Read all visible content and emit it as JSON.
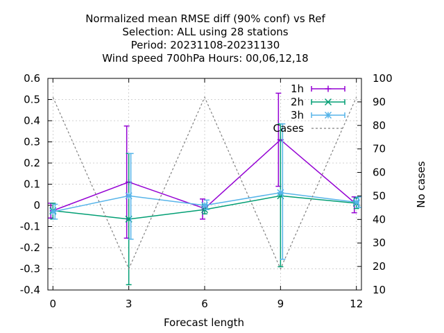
{
  "chart_data": {
    "type": "line",
    "title_lines": [
      "Normalized mean RMSE diff (90% conf) vs Ref",
      "Selection: ALL using    28 stations",
      "Period: 20231108-20231130",
      "Wind speed 700hPa   Hours:  00,06,12,18"
    ],
    "xlabel": "Forecast length",
    "y2label": "No cases",
    "x_ticks": [
      0,
      3,
      6,
      9,
      12
    ],
    "y_ticks": [
      "-0.4",
      "-0.3",
      "-0.2",
      "-0.1",
      "0",
      "0.1",
      "0.2",
      "0.3",
      "0.4",
      "0.5",
      "0.6"
    ],
    "y2_ticks": [
      "10",
      "20",
      "30",
      "40",
      "50",
      "60",
      "70",
      "80",
      "90",
      "100"
    ],
    "xlim": [
      -0.2,
      12.2
    ],
    "ylim": [
      -0.4,
      0.6
    ],
    "y2lim": [
      10,
      100
    ],
    "grid": true,
    "legend_position": "top-right",
    "series": [
      {
        "name": "1h",
        "color": "#9400d3",
        "marker": "plus",
        "x": [
          0,
          3,
          6,
          9,
          12
        ],
        "y": [
          -0.025,
          0.11,
          -0.015,
          0.31,
          0.005
        ],
        "err_low": [
          -0.06,
          -0.155,
          -0.065,
          0.09,
          -0.035
        ],
        "err_high": [
          0.01,
          0.375,
          0.03,
          0.53,
          0.04
        ]
      },
      {
        "name": "2h",
        "color": "#009e73",
        "marker": "cross",
        "x": [
          0,
          3,
          6,
          9,
          12
        ],
        "y": [
          -0.025,
          -0.065,
          -0.02,
          0.045,
          0.01
        ],
        "err_low": [
          -0.065,
          -0.375,
          -0.04,
          -0.29,
          -0.015
        ],
        "err_high": [
          0.01,
          0.245,
          0.005,
          0.385,
          0.035
        ]
      },
      {
        "name": "3h",
        "color": "#56b4e9",
        "marker": "star",
        "x": [
          0,
          3,
          6,
          9,
          12
        ],
        "y": [
          -0.03,
          0.045,
          0.0,
          0.06,
          0.015
        ],
        "err_low": [
          -0.065,
          -0.16,
          -0.02,
          -0.255,
          -0.01
        ],
        "err_high": [
          0.005,
          0.245,
          0.025,
          0.385,
          0.04
        ]
      },
      {
        "name": "Cases",
        "color": "#808080",
        "dashed": true,
        "axis": "y2",
        "x": [
          0,
          3,
          6,
          9,
          12
        ],
        "y": [
          92,
          19,
          92,
          19,
          92
        ]
      }
    ]
  }
}
